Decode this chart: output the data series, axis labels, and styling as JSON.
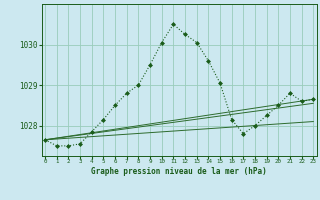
{
  "title": "Graphe pression niveau de la mer (hPa)",
  "background_color": "#cce8f0",
  "grid_color": "#99ccbb",
  "line_color_main": "#1a5c1a",
  "line_color_secondary": "#2d6b2d",
  "x_ticks": [
    0,
    1,
    2,
    3,
    4,
    5,
    6,
    7,
    8,
    9,
    10,
    11,
    12,
    13,
    14,
    15,
    16,
    17,
    18,
    19,
    20,
    21,
    22,
    23
  ],
  "y_ticks": [
    1028,
    1029,
    1030
  ],
  "ylim": [
    1027.25,
    1031.0
  ],
  "xlim": [
    -0.3,
    23.3
  ],
  "series": {
    "main": {
      "x": [
        0,
        1,
        2,
        3,
        4,
        5,
        6,
        7,
        8,
        9,
        10,
        11,
        12,
        13,
        14,
        15,
        16,
        17,
        18,
        19,
        20,
        21,
        22,
        23
      ],
      "y": [
        1027.65,
        1027.5,
        1027.5,
        1027.55,
        1027.85,
        1028.15,
        1028.5,
        1028.8,
        1029.0,
        1029.5,
        1030.05,
        1030.5,
        1030.25,
        1030.05,
        1029.6,
        1029.05,
        1028.15,
        1027.8,
        1028.0,
        1028.25,
        1028.5,
        1028.8,
        1028.6,
        1028.65
      ]
    },
    "line1": {
      "x": [
        0,
        23
      ],
      "y": [
        1027.65,
        1028.1
      ]
    },
    "line2": {
      "x": [
        0,
        23
      ],
      "y": [
        1027.65,
        1028.55
      ]
    },
    "line3": {
      "x": [
        0,
        23
      ],
      "y": [
        1027.65,
        1028.65
      ]
    }
  }
}
